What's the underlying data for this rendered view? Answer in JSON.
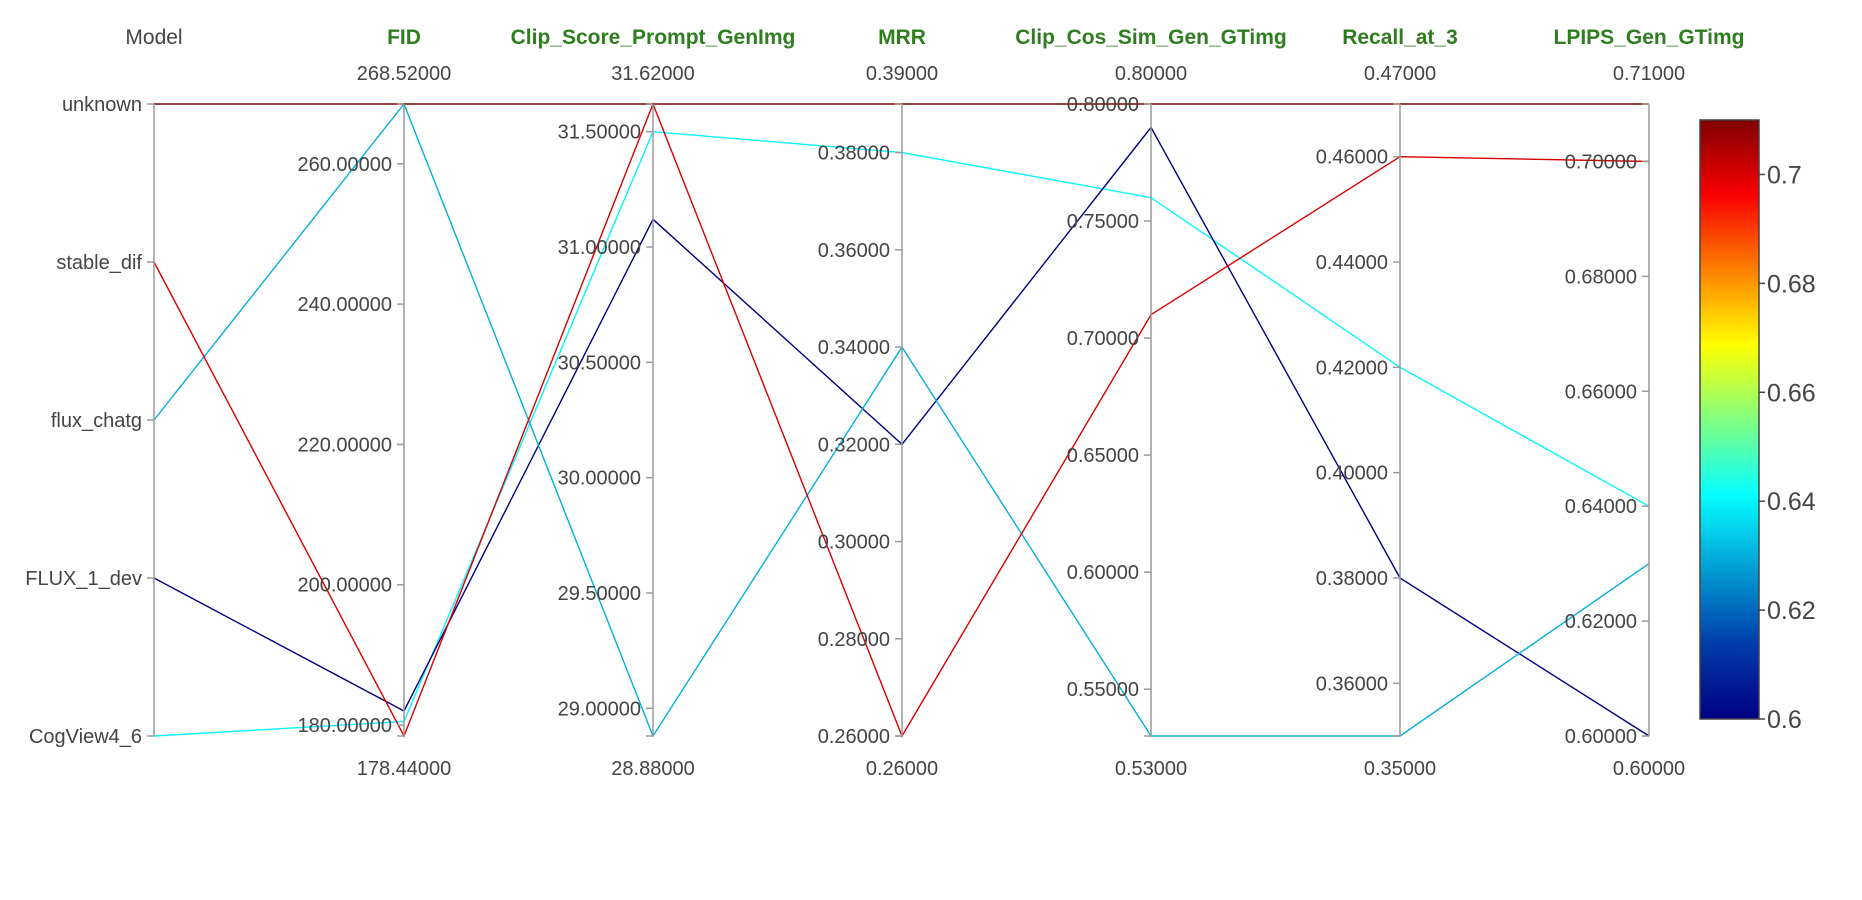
{
  "chart_data": {
    "type": "parallel_coordinates",
    "dimensions": [
      {
        "key": "model",
        "label": "Model",
        "categorical": true,
        "categories": [
          "CogView4_6",
          "FLUX_1_dev",
          "flux_chatg",
          "stable_dif",
          "unknown"
        ]
      },
      {
        "key": "fid",
        "label": "FID",
        "range": [
          178.44,
          268.52
        ],
        "range_labels": [
          "178.44000",
          "268.52000"
        ],
        "ticks": [
          180,
          200,
          220,
          240,
          260
        ],
        "tick_labels": [
          "180.00000",
          "200.00000",
          "220.00000",
          "240.00000",
          "260.00000"
        ]
      },
      {
        "key": "clip_score",
        "label": "Clip_Score_Prompt_GenImg",
        "range": [
          28.88,
          31.62
        ],
        "range_labels": [
          "28.88000",
          "31.62000"
        ],
        "ticks": [
          29.0,
          29.5,
          30.0,
          30.5,
          31.0,
          31.5
        ],
        "tick_labels": [
          "29.00000",
          "29.50000",
          "30.00000",
          "30.50000",
          "31.00000",
          "31.50000"
        ]
      },
      {
        "key": "mrr",
        "label": "MRR",
        "range": [
          0.26,
          0.39
        ],
        "range_labels": [
          "0.26000",
          "0.39000"
        ],
        "ticks": [
          0.26,
          0.28,
          0.3,
          0.32,
          0.34,
          0.36,
          0.38
        ],
        "tick_labels": [
          "0.26000",
          "0.28000",
          "0.30000",
          "0.32000",
          "0.34000",
          "0.36000",
          "0.38000"
        ]
      },
      {
        "key": "clip_cos",
        "label": "Clip_Cos_Sim_Gen_GTimg",
        "range": [
          0.53,
          0.8
        ],
        "range_labels": [
          "0.53000",
          "0.80000"
        ],
        "ticks": [
          0.55,
          0.6,
          0.65,
          0.7,
          0.75,
          0.8
        ],
        "tick_labels": [
          "0.55000",
          "0.60000",
          "0.65000",
          "0.70000",
          "0.75000",
          "0.80000"
        ]
      },
      {
        "key": "recall3",
        "label": "Recall_at_3",
        "range": [
          0.35,
          0.47
        ],
        "range_labels": [
          "0.35000",
          "0.47000"
        ],
        "ticks": [
          0.36,
          0.38,
          0.4,
          0.42,
          0.44,
          0.46
        ],
        "tick_labels": [
          "0.36000",
          "0.38000",
          "0.40000",
          "0.42000",
          "0.44000",
          "0.46000"
        ]
      },
      {
        "key": "lpips",
        "label": "LPIPS_Gen_GTimg",
        "range": [
          0.6,
          0.71
        ],
        "range_labels": [
          "0.60000",
          "0.71000"
        ],
        "ticks": [
          0.6,
          0.62,
          0.64,
          0.66,
          0.68,
          0.7
        ],
        "tick_labels": [
          "0.60000",
          "0.62000",
          "0.64000",
          "0.66000",
          "0.68000",
          "0.70000"
        ]
      }
    ],
    "rows": [
      {
        "model": "CogView4_6",
        "fid": 180.5,
        "clip_score": 31.5,
        "mrr": 0.38,
        "clip_cos": 0.76,
        "recall3": 0.42,
        "lpips": 0.64
      },
      {
        "model": "FLUX_1_dev",
        "fid": 182.0,
        "clip_score": 31.12,
        "mrr": 0.32,
        "clip_cos": 0.79,
        "recall3": 0.38,
        "lpips": 0.6
      },
      {
        "model": "flux_chatg",
        "fid": 268.52,
        "clip_score": 28.88,
        "mrr": 0.34,
        "clip_cos": 0.53,
        "recall3": 0.35,
        "lpips": 0.63
      },
      {
        "model": "stable_dif",
        "fid": 178.44,
        "clip_score": 31.62,
        "mrr": 0.26,
        "clip_cos": 0.71,
        "recall3": 0.46,
        "lpips": 0.7
      },
      {
        "model": "unknown",
        "fid": 268.52,
        "clip_score": 31.62,
        "mrr": 0.39,
        "clip_cos": 0.8,
        "recall3": 0.47,
        "lpips": 0.71
      }
    ],
    "color_by": "lpips",
    "colorscale": "jet",
    "colorbar": {
      "range": [
        0.6,
        0.71
      ],
      "ticks": [
        0.6,
        0.62,
        0.64,
        0.66,
        0.68,
        0.7
      ],
      "tick_labels": [
        "0.6",
        "0.62",
        "0.64",
        "0.66",
        "0.68",
        "0.7"
      ]
    }
  }
}
